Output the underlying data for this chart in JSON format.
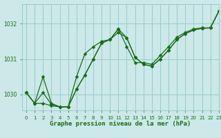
{
  "xlabel": "Graphe pression niveau de la mer (hPa)",
  "bg_color": "#cce8e8",
  "grid_color": "#99cccc",
  "line_color": "#1a6b1a",
  "xlim": [
    -0.5,
    23
  ],
  "ylim": [
    1029.55,
    1032.55
  ],
  "yticks": [
    1030,
    1031,
    1032
  ],
  "ytick_labels": [
    "1030",
    "1031",
    "1032"
  ],
  "xticks": [
    0,
    1,
    2,
    3,
    4,
    5,
    6,
    7,
    8,
    9,
    10,
    11,
    12,
    13,
    14,
    15,
    16,
    17,
    18,
    19,
    20,
    21,
    22,
    23
  ],
  "series1": [
    1030.05,
    1029.75,
    1030.05,
    1029.72,
    1029.65,
    1029.65,
    1030.15,
    1030.55,
    1031.0,
    1031.45,
    1031.55,
    1031.75,
    1031.6,
    1031.05,
    1030.85,
    1030.8,
    1031.0,
    1031.25,
    1031.55,
    1031.72,
    1031.82,
    1031.87,
    1031.88,
    1032.35
  ],
  "series2": [
    1030.05,
    1029.75,
    1030.5,
    1029.75,
    1029.65,
    1029.65,
    1030.15,
    1030.55,
    1031.0,
    1031.45,
    1031.55,
    1031.85,
    1031.6,
    1031.05,
    1030.85,
    1030.8,
    1031.0,
    1031.25,
    1031.55,
    1031.72,
    1031.82,
    1031.87,
    1031.88,
    1032.35
  ],
  "series3": [
    1030.05,
    1029.75,
    1029.75,
    1029.68,
    1029.65,
    1029.65,
    1030.5,
    1031.15,
    1031.35,
    1031.5,
    1031.55,
    1031.85,
    1031.35,
    1030.9,
    1030.9,
    1030.85,
    1031.1,
    1031.35,
    1031.62,
    1031.75,
    1031.85,
    1031.88,
    1031.88,
    1032.35
  ],
  "marker_size": 2.5
}
